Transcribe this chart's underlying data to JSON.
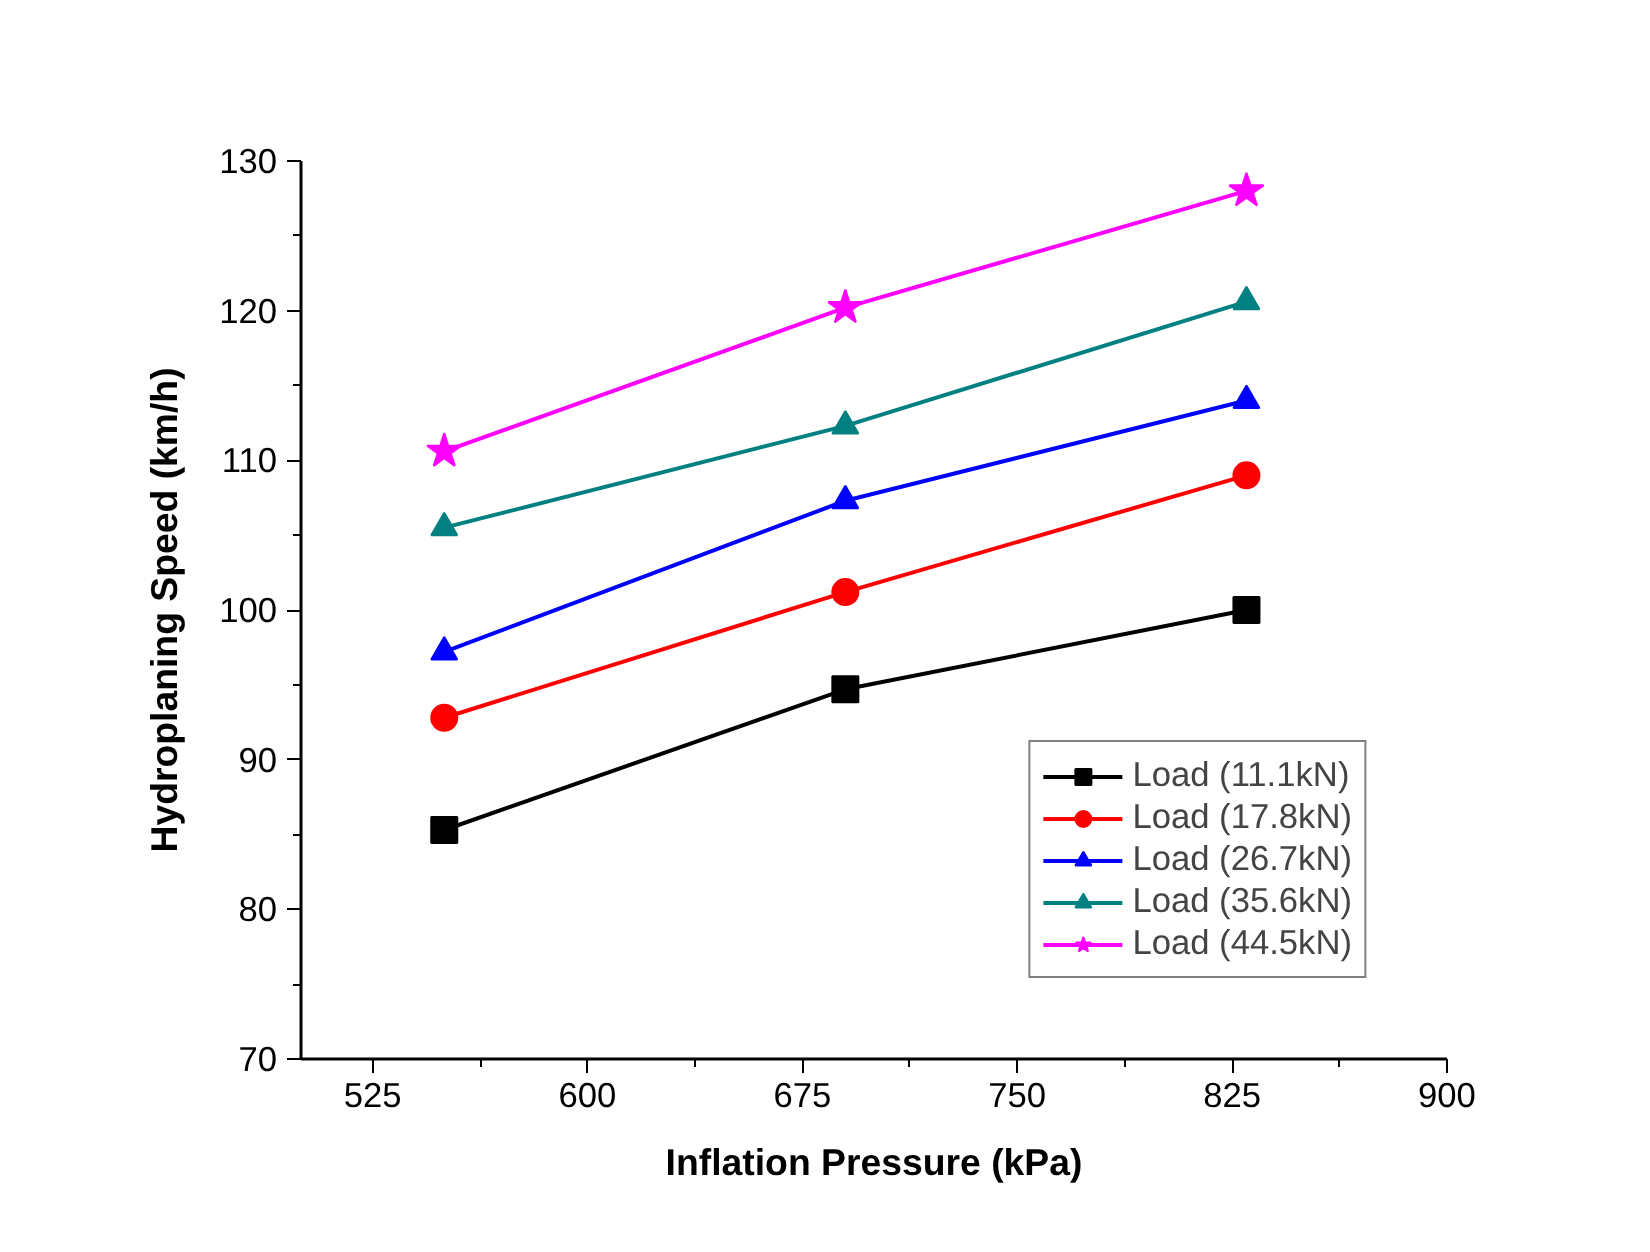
{
  "chart_data": {
    "type": "line",
    "xlabel": "Inflation Pressure (kPa)",
    "ylabel": "Hydroplaning Speed (km/h)",
    "x": [
      550,
      690,
      830
    ],
    "xlim": [
      500,
      900
    ],
    "xticks": [
      525,
      600,
      675,
      750,
      825,
      900
    ],
    "ylim": [
      70,
      130
    ],
    "yticks": [
      70,
      80,
      90,
      100,
      110,
      120,
      130
    ],
    "grid": false,
    "legend": "bottom right",
    "line_style": "solid",
    "series": [
      {
        "name": "Load (11.1kN)",
        "color": "#000000",
        "marker": "square",
        "values": [
          85.3,
          94.7,
          100.0
        ]
      },
      {
        "name": "Load (17.8kN)",
        "color": "#ff0000",
        "marker": "circle",
        "values": [
          92.8,
          101.2,
          109.0
        ]
      },
      {
        "name": "Load (26.7kN)",
        "color": "#0000ff",
        "marker": "triangle",
        "values": [
          97.2,
          107.3,
          114.0
        ]
      },
      {
        "name": "Load (35.6kN)",
        "color": "#008080",
        "marker": "triangle",
        "values": [
          105.5,
          112.3,
          120.6
        ]
      },
      {
        "name": "Load (44.5kN)",
        "color": "#ff00ff",
        "marker": "star",
        "values": [
          110.6,
          120.2,
          128.0
        ]
      }
    ]
  }
}
